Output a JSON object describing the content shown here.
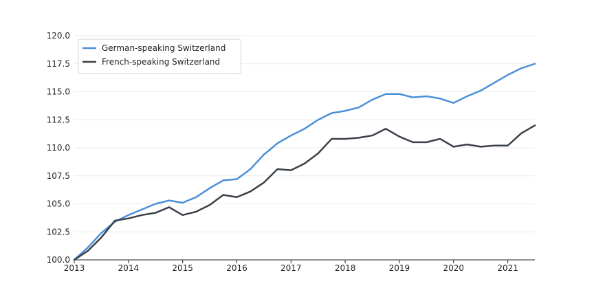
{
  "chart_data": {
    "type": "line",
    "title": "",
    "xlabel": "",
    "ylabel": "",
    "xlim": [
      2013.0,
      2021.5
    ],
    "ylim": [
      100.0,
      120.0
    ],
    "x_ticks": [
      2013,
      2014,
      2015,
      2016,
      2017,
      2018,
      2019,
      2020,
      2021
    ],
    "x_tick_labels": [
      "2013",
      "2014",
      "2015",
      "2016",
      "2017",
      "2018",
      "2019",
      "2020",
      "2021"
    ],
    "y_ticks": [
      100.0,
      102.5,
      105.0,
      107.5,
      110.0,
      112.5,
      115.0,
      117.5,
      120.0
    ],
    "y_tick_labels": [
      "100.0",
      "102.5",
      "105.0",
      "107.5",
      "110.0",
      "112.5",
      "115.0",
      "117.5",
      "120.0"
    ],
    "grid": "horizontal",
    "legend_position": "top-left",
    "x": [
      2013.0,
      2013.25,
      2013.5,
      2013.75,
      2014.0,
      2014.25,
      2014.5,
      2014.75,
      2015.0,
      2015.25,
      2015.5,
      2015.75,
      2016.0,
      2016.25,
      2016.5,
      2016.75,
      2017.0,
      2017.25,
      2017.5,
      2017.75,
      2018.0,
      2018.25,
      2018.5,
      2018.75,
      2019.0,
      2019.25,
      2019.5,
      2019.75,
      2020.0,
      2020.25,
      2020.5,
      2020.75,
      2021.0,
      2021.25,
      2021.5
    ],
    "series": [
      {
        "name": "German-speaking Switzerland",
        "color": "#4a90d9",
        "values": [
          100.0,
          101.1,
          102.4,
          103.4,
          104.0,
          104.5,
          105.0,
          105.3,
          105.1,
          105.6,
          106.4,
          107.1,
          107.2,
          108.1,
          109.4,
          110.4,
          111.1,
          111.7,
          112.5,
          113.1,
          113.3,
          113.6,
          114.3,
          114.8,
          114.8,
          114.5,
          114.6,
          114.4,
          114.0,
          114.6,
          115.1,
          115.8,
          116.5,
          117.1,
          117.5
        ]
      },
      {
        "name": "French-speaking Switzerland",
        "color": "#3a4048",
        "values": [
          100.0,
          100.8,
          102.0,
          103.5,
          103.7,
          104.0,
          104.2,
          104.7,
          104.0,
          104.3,
          104.9,
          105.8,
          105.6,
          106.1,
          106.9,
          108.1,
          108.0,
          108.6,
          109.5,
          110.8,
          110.8,
          110.9,
          111.1,
          111.7,
          111.0,
          110.5,
          110.5,
          110.8,
          110.1,
          110.3,
          110.1,
          110.2,
          110.2,
          111.3,
          112.0
        ]
      }
    ]
  }
}
